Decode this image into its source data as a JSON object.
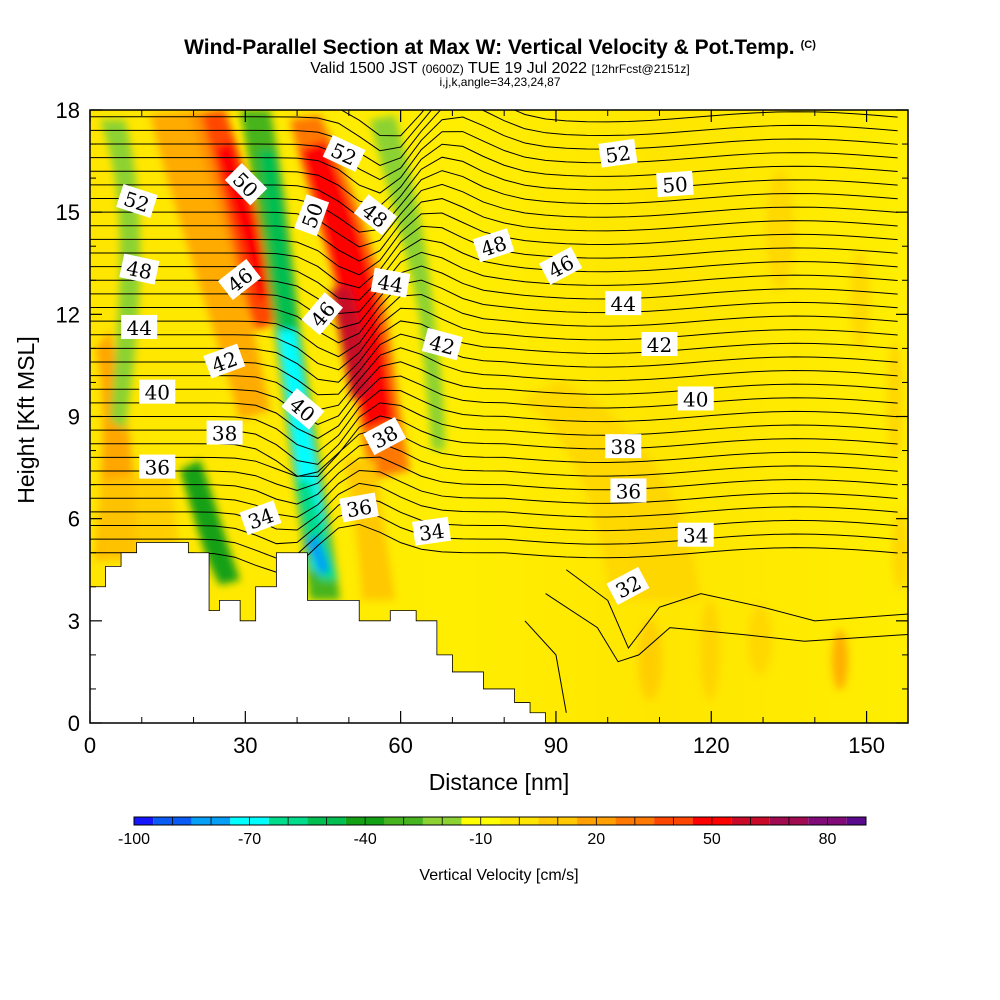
{
  "header": {
    "title": "Wind-Parallel Section at Max W: Vertical Velocity & Pot.Temp.",
    "copyright": "(C)",
    "subtitle_a": "Valid 1500 JST",
    "subtitle_zulu": "(0600Z)",
    "subtitle_b": "TUE 19 Jul 2022",
    "subtitle_run": "[12hrFcst@2151z]",
    "subtitle_2": "i,j,k,angle=34,23,24,87"
  },
  "chart_data": {
    "type": "heatmap",
    "xlabel": "Distance [nm]",
    "ylabel": "Height [Kft MSL]",
    "xlim": [
      0,
      158
    ],
    "ylim": [
      0,
      18
    ],
    "xticks": [
      0,
      30,
      60,
      90,
      120,
      150
    ],
    "yticks": [
      0,
      3,
      6,
      9,
      12,
      15,
      18
    ],
    "colorbar": {
      "label": "Vertical Velocity [cm/s]",
      "min": -100,
      "max": 90,
      "tick_values": [
        -100,
        -70,
        -40,
        -10,
        20,
        50,
        80
      ],
      "colors": [
        "#1414ff",
        "#0a5af5",
        "#05a0f5",
        "#00ffff",
        "#00dc8c",
        "#00be50",
        "#14a014",
        "#46b41e",
        "#8cd232",
        "#ffff00",
        "#ffe600",
        "#ffc800",
        "#ffa000",
        "#ff7800",
        "#ff4600",
        "#ff0000",
        "#c80a28",
        "#a00a50",
        "#800a78",
        "#5a0a8c"
      ]
    },
    "theta_contour_labels": [
      {
        "text": "52",
        "x": 9,
        "y": 15.3,
        "angle": 18
      },
      {
        "text": "48",
        "x": 9.5,
        "y": 13.3,
        "angle": 12
      },
      {
        "text": "44",
        "x": 9.5,
        "y": 11.6,
        "angle": 0
      },
      {
        "text": "40",
        "x": 13,
        "y": 9.7,
        "angle": 0
      },
      {
        "text": "36",
        "x": 13,
        "y": 7.5,
        "angle": 0
      },
      {
        "text": "38",
        "x": 26,
        "y": 8.5,
        "angle": 0
      },
      {
        "text": "42",
        "x": 26,
        "y": 10.6,
        "angle": -20
      },
      {
        "text": "46",
        "x": 29,
        "y": 13.0,
        "angle": -38
      },
      {
        "text": "50",
        "x": 30,
        "y": 15.8,
        "angle": 45
      },
      {
        "text": "34",
        "x": 33,
        "y": 6.0,
        "angle": -20
      },
      {
        "text": "40",
        "x": 41,
        "y": 9.2,
        "angle": 40
      },
      {
        "text": "46",
        "x": 45,
        "y": 12.0,
        "angle": -50
      },
      {
        "text": "50",
        "x": 43,
        "y": 14.9,
        "angle": -70
      },
      {
        "text": "52",
        "x": 49,
        "y": 16.7,
        "angle": 25
      },
      {
        "text": "48",
        "x": 55,
        "y": 14.9,
        "angle": 38
      },
      {
        "text": "44",
        "x": 58,
        "y": 12.9,
        "angle": 10
      },
      {
        "text": "36",
        "x": 52,
        "y": 6.3,
        "angle": -10
      },
      {
        "text": "38",
        "x": 57,
        "y": 8.4,
        "angle": -28
      },
      {
        "text": "42",
        "x": 68,
        "y": 11.1,
        "angle": 15
      },
      {
        "text": "34",
        "x": 66,
        "y": 5.6,
        "angle": -8
      },
      {
        "text": "48",
        "x": 78,
        "y": 14.0,
        "angle": -18
      },
      {
        "text": "46",
        "x": 91,
        "y": 13.4,
        "angle": -28
      },
      {
        "text": "52",
        "x": 102,
        "y": 16.7,
        "angle": -8
      },
      {
        "text": "50",
        "x": 113,
        "y": 15.8,
        "angle": -4
      },
      {
        "text": "44",
        "x": 103,
        "y": 12.3,
        "angle": 0
      },
      {
        "text": "42",
        "x": 110,
        "y": 11.1,
        "angle": 0
      },
      {
        "text": "40",
        "x": 117,
        "y": 9.5,
        "angle": 0
      },
      {
        "text": "38",
        "x": 103,
        "y": 8.1,
        "angle": 0
      },
      {
        "text": "36",
        "x": 104,
        "y": 6.8,
        "angle": 0
      },
      {
        "text": "34",
        "x": 117,
        "y": 5.5,
        "angle": 0
      },
      {
        "text": "32",
        "x": 104,
        "y": 4.0,
        "angle": -28
      }
    ],
    "terrain": [
      [
        0,
        4.0
      ],
      [
        3,
        4.0
      ],
      [
        3,
        4.6
      ],
      [
        6,
        4.6
      ],
      [
        6,
        5.0
      ],
      [
        9,
        5.0
      ],
      [
        9,
        5.3
      ],
      [
        19,
        5.3
      ],
      [
        19,
        5.0
      ],
      [
        23,
        5.0
      ],
      [
        23,
        3.3
      ],
      [
        25,
        3.3
      ],
      [
        25,
        3.6
      ],
      [
        29,
        3.6
      ],
      [
        29,
        3.0
      ],
      [
        32,
        3.0
      ],
      [
        32,
        4.0
      ],
      [
        36,
        4.0
      ],
      [
        36,
        5.0
      ],
      [
        42,
        5.0
      ],
      [
        42,
        3.6
      ],
      [
        52,
        3.6
      ],
      [
        52,
        3.0
      ],
      [
        58,
        3.0
      ],
      [
        58,
        3.3
      ],
      [
        63,
        3.3
      ],
      [
        63,
        3.0
      ],
      [
        67,
        3.0
      ],
      [
        67,
        2.0
      ],
      [
        70,
        2.0
      ],
      [
        70,
        1.5
      ],
      [
        76,
        1.5
      ],
      [
        76,
        1.0
      ],
      [
        82,
        1.0
      ],
      [
        82,
        0.6
      ],
      [
        85,
        0.6
      ],
      [
        85,
        0.3
      ],
      [
        88,
        0.3
      ],
      [
        88,
        0.0
      ],
      [
        158,
        0.0
      ]
    ]
  }
}
